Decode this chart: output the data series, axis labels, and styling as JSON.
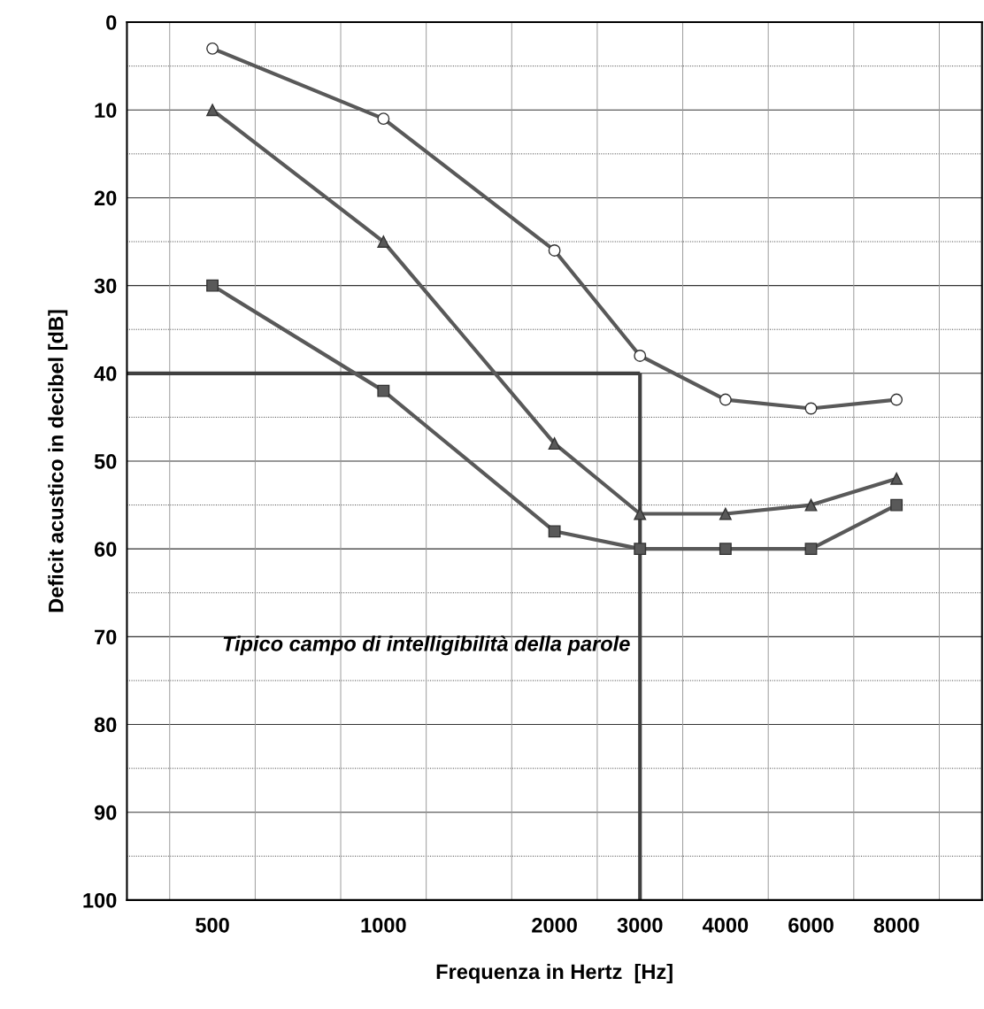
{
  "chart_data": {
    "type": "line",
    "xlabel": "Frequenza in Hertz  [Hz]",
    "ylabel": "Deficit acustico in decibel [dB]",
    "categories": [
      "500",
      null,
      "1000",
      null,
      "2000",
      "3000",
      "4000",
      "6000",
      "8000"
    ],
    "series": [
      {
        "color": "#595959",
        "marker": "circle",
        "values": [
          3,
          null,
          11,
          null,
          26,
          38,
          43,
          44,
          43
        ]
      },
      {
        "color": "#595959",
        "marker": "triangle",
        "values": [
          10,
          null,
          25,
          null,
          48,
          56,
          56,
          55,
          52
        ]
      },
      {
        "color": "#595959",
        "marker": "square",
        "values": [
          30,
          null,
          42,
          null,
          58,
          60,
          60,
          60,
          55
        ]
      }
    ],
    "ylim": [
      100,
      0
    ],
    "yticks": [
      0,
      {
        "value": 5,
        "label": null
      },
      10,
      {
        "value": 15,
        "label": null
      },
      20,
      {
        "value": 25,
        "label": null
      },
      30,
      {
        "value": 35,
        "label": null
      },
      40,
      {
        "value": 45,
        "label": null
      },
      50,
      {
        "value": 55,
        "label": null
      },
      60,
      {
        "value": 65,
        "label": null
      },
      70,
      {
        "value": 75,
        "label": null
      },
      80,
      {
        "value": 85,
        "label": null
      },
      90,
      {
        "value": 95,
        "label": null
      },
      100
    ],
    "ref_lines": [
      {
        "axis": "y",
        "value": 40,
        "color": "#404040"
      },
      {
        "axis": "x",
        "value": "3000",
        "color": "#404040"
      }
    ],
    "annotations": [
      "Tipico campo di intelligibilità della parole"
    ],
    "grid": true
  }
}
